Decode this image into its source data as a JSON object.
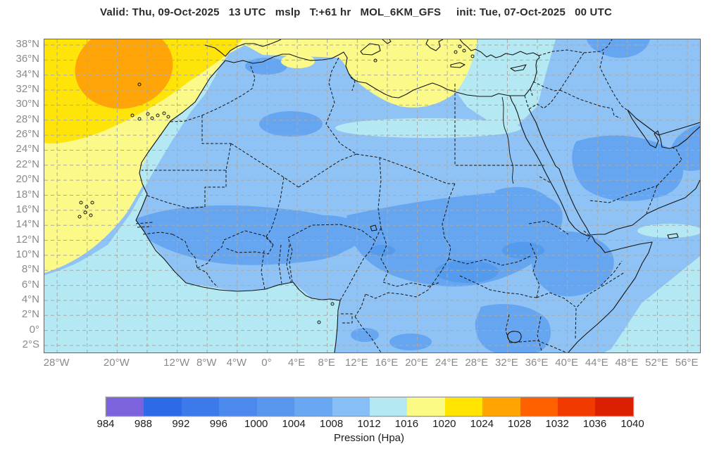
{
  "title": "Valid: Thu, 09-Oct-2025   13 UTC   mslp   T:+61 hr   MOL_6KM_GFS     init: Tue, 07-Oct-2025   00 UTC",
  "map": {
    "lat_ticks": [
      {
        "deg": 38,
        "label": "38°N"
      },
      {
        "deg": 36,
        "label": "36°N"
      },
      {
        "deg": 34,
        "label": "34°N"
      },
      {
        "deg": 32,
        "label": "32°N"
      },
      {
        "deg": 30,
        "label": "30°N"
      },
      {
        "deg": 28,
        "label": "28°N"
      },
      {
        "deg": 26,
        "label": "26°N"
      },
      {
        "deg": 24,
        "label": "24°N"
      },
      {
        "deg": 22,
        "label": "22°N"
      },
      {
        "deg": 20,
        "label": "20°N"
      },
      {
        "deg": 18,
        "label": "18°N"
      },
      {
        "deg": 16,
        "label": "16°N"
      },
      {
        "deg": 14,
        "label": "14°N"
      },
      {
        "deg": 12,
        "label": "12°N"
      },
      {
        "deg": 10,
        "label": "10°N"
      },
      {
        "deg": 8,
        "label": "8°N"
      },
      {
        "deg": 6,
        "label": "6°N"
      },
      {
        "deg": 4,
        "label": "4°N"
      },
      {
        "deg": 2,
        "label": "2°N"
      },
      {
        "deg": 0,
        "label": "0°"
      },
      {
        "deg": -2,
        "label": "2°S"
      }
    ],
    "lon_ticks": [
      {
        "deg": -28,
        "label": "28°W"
      },
      {
        "deg": -20,
        "label": "20°W"
      },
      {
        "deg": -12,
        "label": "12°W"
      },
      {
        "deg": -8,
        "label": "8°W"
      },
      {
        "deg": -4,
        "label": "4°W"
      },
      {
        "deg": 0,
        "label": "0°"
      },
      {
        "deg": 4,
        "label": "4°E"
      },
      {
        "deg": 8,
        "label": "8°E"
      },
      {
        "deg": 12,
        "label": "12°E"
      },
      {
        "deg": 16,
        "label": "16°E"
      },
      {
        "deg": 20,
        "label": "20°E"
      },
      {
        "deg": 24,
        "label": "24°E"
      },
      {
        "deg": 28,
        "label": "28°E"
      },
      {
        "deg": 32,
        "label": "32°E"
      },
      {
        "deg": 36,
        "label": "36°E"
      },
      {
        "deg": 40,
        "label": "40°E"
      },
      {
        "deg": 44,
        "label": "44°E"
      },
      {
        "deg": 48,
        "label": "48°E"
      },
      {
        "deg": 52,
        "label": "52°E"
      },
      {
        "deg": 56,
        "label": "56°E"
      }
    ]
  },
  "colorbar": {
    "title": "Pression (Hpa)",
    "tick_values": [
      984,
      988,
      992,
      996,
      1000,
      1004,
      1008,
      1012,
      1016,
      1020,
      1024,
      1028,
      1032,
      1036,
      1040
    ],
    "segment_colors": [
      "#7c62dc",
      "#2d6ae8",
      "#3c79ea",
      "#4b8aec",
      "#5997ef",
      "#69a7f2",
      "#87bef5",
      "#b4e8f2",
      "#fbfa85",
      "#ffe400",
      "#ffa400",
      "#ff6000",
      "#f03a00",
      "#da2000"
    ]
  },
  "field_colors": {
    "base_1008_1012": "#8fc3f5",
    "cyan_1012_1016": "#b4e8f2",
    "medium_1004_1008": "#66a6f1",
    "dark_1000_1004": "#549bee",
    "pale_yellow_1016_1020": "#fbfa88",
    "gold_1020_1024": "#ffe40a",
    "orange_1024_1028": "#ffa508"
  }
}
